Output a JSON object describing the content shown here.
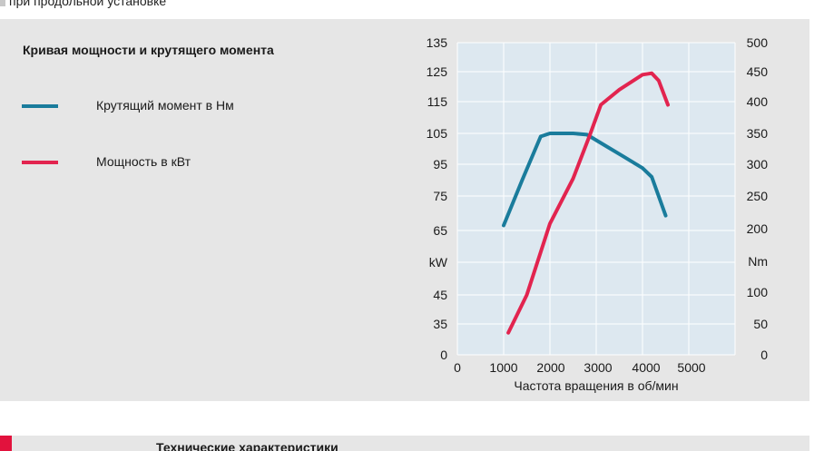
{
  "header": {
    "caption": "при продольной установке"
  },
  "legend": {
    "title": "Кривая мощности и крутящего момента",
    "items": [
      {
        "label": "Крутящий момент в Нм",
        "color": "#1a7c9c"
      },
      {
        "label": "Мощность в кВт",
        "color": "#e2244f"
      }
    ]
  },
  "footer": {
    "title": "Технические характеристики"
  },
  "chart_data": {
    "type": "line",
    "title": "Кривая мощности и крутящего момента",
    "xlabel": "Частота вращения в об/мин",
    "x_ticks": [
      "0",
      "1000",
      "2000",
      "3000",
      "4000",
      "5000"
    ],
    "xlim": [
      0,
      6000
    ],
    "y_left": {
      "ticks": [
        "135",
        "125",
        "115",
        "105",
        "95",
        "75",
        "65",
        "kW",
        "45",
        "35",
        "0"
      ],
      "unit": "kW"
    },
    "y_right": {
      "ticks": [
        "500",
        "450",
        "400",
        "350",
        "300",
        "250",
        "200",
        "Nm",
        "100",
        "50",
        "0"
      ],
      "unit": "Nm"
    },
    "grid": true,
    "plot_background": "#dde8f0",
    "series": [
      {
        "name": "Крутящий момент в Нм",
        "axis": "right",
        "color": "#1a7c9c",
        "points": [
          [
            1000,
            205
          ],
          [
            1400,
            275
          ],
          [
            1800,
            345
          ],
          [
            2000,
            350
          ],
          [
            2500,
            350
          ],
          [
            2800,
            348
          ],
          [
            3200,
            330
          ],
          [
            3600,
            312
          ],
          [
            4000,
            294
          ],
          [
            4200,
            280
          ],
          [
            4500,
            220
          ]
        ]
      },
      {
        "name": "Мощность в кВт",
        "axis": "left",
        "color": "#e2244f",
        "points": [
          [
            1100,
            25
          ],
          [
            1500,
            45
          ],
          [
            2000,
            67
          ],
          [
            2500,
            86
          ],
          [
            2850,
            104
          ],
          [
            3100,
            114
          ],
          [
            3500,
            119
          ],
          [
            4000,
            124
          ],
          [
            4200,
            124.5
          ],
          [
            4350,
            122
          ],
          [
            4550,
            114
          ]
        ]
      }
    ]
  }
}
